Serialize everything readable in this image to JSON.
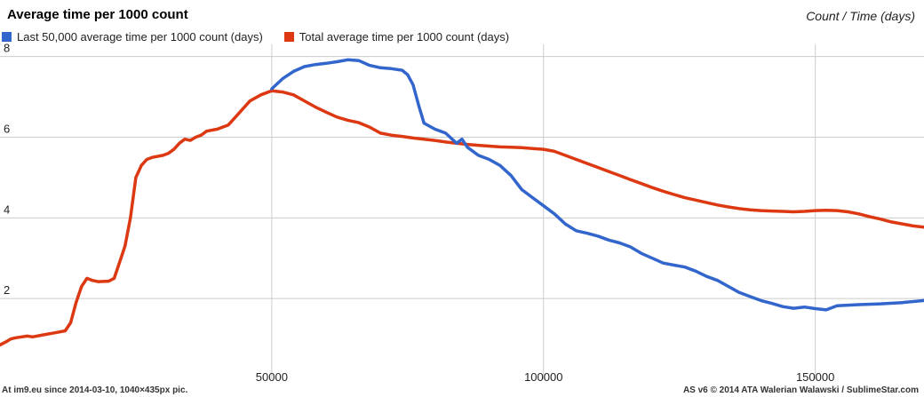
{
  "title": "Average time per 1000 count",
  "axis_caption": "Count / Time (days)",
  "footer": {
    "left": "At im9.eu  since 2014-03-10, 1040×435px pic.",
    "right": "AS v6 © 2014 ATA Walerian Walawski / SublimeStar.com"
  },
  "colors": {
    "last": "#3366cc",
    "total": "#dc3912",
    "grid": "#cccccc"
  },
  "chart_data": {
    "type": "line",
    "xlim": [
      0,
      170000
    ],
    "ylim": [
      0,
      8.3
    ],
    "x_ticks": [
      {
        "value": 50000,
        "label": "50000"
      },
      {
        "value": 100000,
        "label": "100000"
      },
      {
        "value": 150000,
        "label": "150000"
      }
    ],
    "y_ticks": [
      {
        "value": 2,
        "label": "2"
      },
      {
        "value": 4,
        "label": "4"
      },
      {
        "value": 6,
        "label": "6"
      },
      {
        "value": 8,
        "label": "8"
      }
    ],
    "grid": true,
    "legend_position": "top",
    "series": [
      {
        "name": "Last 50,000 average time per 1000 count (days)",
        "color": "#3366cc",
        "points": [
          [
            50000,
            7.2
          ],
          [
            52000,
            7.45
          ],
          [
            54000,
            7.63
          ],
          [
            56000,
            7.75
          ],
          [
            58000,
            7.8
          ],
          [
            60000,
            7.83
          ],
          [
            62000,
            7.87
          ],
          [
            64000,
            7.92
          ],
          [
            66000,
            7.9
          ],
          [
            68000,
            7.78
          ],
          [
            70000,
            7.72
          ],
          [
            72000,
            7.7
          ],
          [
            74000,
            7.66
          ],
          [
            75000,
            7.55
          ],
          [
            76000,
            7.3
          ],
          [
            77000,
            6.8
          ],
          [
            78000,
            6.35
          ],
          [
            80000,
            6.2
          ],
          [
            82000,
            6.1
          ],
          [
            84000,
            5.85
          ],
          [
            85000,
            5.95
          ],
          [
            86000,
            5.75
          ],
          [
            88000,
            5.55
          ],
          [
            90000,
            5.45
          ],
          [
            92000,
            5.3
          ],
          [
            94000,
            5.05
          ],
          [
            96000,
            4.7
          ],
          [
            98000,
            4.5
          ],
          [
            100000,
            4.3
          ],
          [
            102000,
            4.1
          ],
          [
            104000,
            3.85
          ],
          [
            106000,
            3.68
          ],
          [
            108000,
            3.62
          ],
          [
            110000,
            3.55
          ],
          [
            112000,
            3.45
          ],
          [
            114000,
            3.38
          ],
          [
            116000,
            3.28
          ],
          [
            118000,
            3.12
          ],
          [
            120000,
            3.0
          ],
          [
            122000,
            2.88
          ],
          [
            124000,
            2.83
          ],
          [
            126000,
            2.78
          ],
          [
            128000,
            2.68
          ],
          [
            130000,
            2.55
          ],
          [
            132000,
            2.45
          ],
          [
            134000,
            2.3
          ],
          [
            136000,
            2.15
          ],
          [
            138000,
            2.05
          ],
          [
            140000,
            1.95
          ],
          [
            142000,
            1.88
          ],
          [
            144000,
            1.8
          ],
          [
            146000,
            1.76
          ],
          [
            148000,
            1.79
          ],
          [
            150000,
            1.75
          ],
          [
            152000,
            1.72
          ],
          [
            154000,
            1.82
          ],
          [
            158000,
            1.85
          ],
          [
            162000,
            1.87
          ],
          [
            166000,
            1.9
          ],
          [
            170000,
            1.95
          ]
        ]
      },
      {
        "name": "Total average time per 1000 count (days)",
        "color": "#dc3912",
        "points": [
          [
            0,
            0.85
          ],
          [
            1000,
            0.92
          ],
          [
            2000,
            1.0
          ],
          [
            3000,
            1.03
          ],
          [
            4000,
            1.05
          ],
          [
            5000,
            1.07
          ],
          [
            6000,
            1.05
          ],
          [
            8000,
            1.1
          ],
          [
            10000,
            1.15
          ],
          [
            12000,
            1.2
          ],
          [
            13000,
            1.4
          ],
          [
            14000,
            1.9
          ],
          [
            15000,
            2.3
          ],
          [
            16000,
            2.5
          ],
          [
            17000,
            2.45
          ],
          [
            18000,
            2.42
          ],
          [
            20000,
            2.43
          ],
          [
            21000,
            2.5
          ],
          [
            22000,
            2.9
          ],
          [
            23000,
            3.3
          ],
          [
            24000,
            4.0
          ],
          [
            25000,
            5.0
          ],
          [
            26000,
            5.3
          ],
          [
            27000,
            5.45
          ],
          [
            28000,
            5.5
          ],
          [
            30000,
            5.55
          ],
          [
            31000,
            5.6
          ],
          [
            32000,
            5.7
          ],
          [
            33000,
            5.85
          ],
          [
            34000,
            5.95
          ],
          [
            35000,
            5.92
          ],
          [
            36000,
            6.0
          ],
          [
            37000,
            6.05
          ],
          [
            38000,
            6.15
          ],
          [
            40000,
            6.2
          ],
          [
            42000,
            6.3
          ],
          [
            44000,
            6.6
          ],
          [
            46000,
            6.9
          ],
          [
            48000,
            7.05
          ],
          [
            50000,
            7.15
          ],
          [
            52000,
            7.12
          ],
          [
            54000,
            7.05
          ],
          [
            56000,
            6.9
          ],
          [
            58000,
            6.75
          ],
          [
            60000,
            6.62
          ],
          [
            62000,
            6.5
          ],
          [
            64000,
            6.42
          ],
          [
            66000,
            6.36
          ],
          [
            68000,
            6.25
          ],
          [
            70000,
            6.1
          ],
          [
            72000,
            6.05
          ],
          [
            74000,
            6.02
          ],
          [
            76000,
            5.98
          ],
          [
            78000,
            5.95
          ],
          [
            80000,
            5.92
          ],
          [
            82000,
            5.88
          ],
          [
            84000,
            5.85
          ],
          [
            86000,
            5.82
          ],
          [
            88000,
            5.8
          ],
          [
            90000,
            5.78
          ],
          [
            92000,
            5.76
          ],
          [
            94000,
            5.75
          ],
          [
            96000,
            5.74
          ],
          [
            98000,
            5.72
          ],
          [
            100000,
            5.7
          ],
          [
            102000,
            5.65
          ],
          [
            104000,
            5.55
          ],
          [
            106000,
            5.45
          ],
          [
            108000,
            5.35
          ],
          [
            110000,
            5.25
          ],
          [
            112000,
            5.15
          ],
          [
            114000,
            5.05
          ],
          [
            116000,
            4.95
          ],
          [
            118000,
            4.85
          ],
          [
            120000,
            4.75
          ],
          [
            122000,
            4.66
          ],
          [
            124000,
            4.58
          ],
          [
            126000,
            4.5
          ],
          [
            128000,
            4.44
          ],
          [
            130000,
            4.38
          ],
          [
            132000,
            4.32
          ],
          [
            134000,
            4.27
          ],
          [
            136000,
            4.23
          ],
          [
            138000,
            4.2
          ],
          [
            140000,
            4.18
          ],
          [
            142000,
            4.17
          ],
          [
            144000,
            4.16
          ],
          [
            146000,
            4.15
          ],
          [
            148000,
            4.16
          ],
          [
            150000,
            4.18
          ],
          [
            152000,
            4.19
          ],
          [
            154000,
            4.18
          ],
          [
            156000,
            4.15
          ],
          [
            158000,
            4.1
          ],
          [
            160000,
            4.03
          ],
          [
            162000,
            3.97
          ],
          [
            164000,
            3.9
          ],
          [
            166000,
            3.85
          ],
          [
            168000,
            3.8
          ],
          [
            170000,
            3.77
          ]
        ]
      }
    ]
  }
}
